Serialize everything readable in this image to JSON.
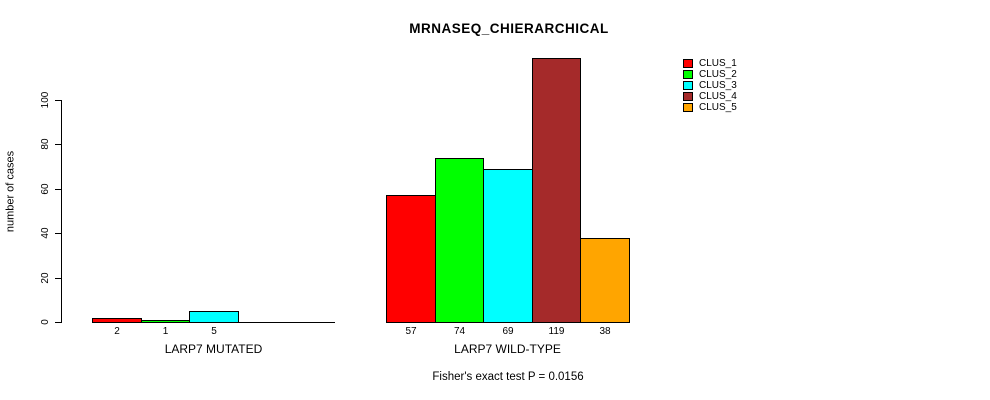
{
  "chart_data": {
    "type": "bar",
    "title": "MRNASEQ_CHIERARCHICAL",
    "ylabel": "number of cases",
    "xlabel": "",
    "footnote": "Fisher's exact test P = 0.0156",
    "y_ticks": [
      0,
      20,
      40,
      60,
      80,
      100
    ],
    "ylim": [
      0,
      119
    ],
    "grid": false,
    "legend_position": "top-right",
    "series": [
      {
        "name": "CLUS_1",
        "color": "#FF0000"
      },
      {
        "name": "CLUS_2",
        "color": "#00FF00"
      },
      {
        "name": "CLUS_3",
        "color": "#00FFFF"
      },
      {
        "name": "CLUS_4",
        "color": "#A52A2A"
      },
      {
        "name": "CLUS_5",
        "color": "#FFA500"
      }
    ],
    "groups": [
      {
        "label": "LARP7 MUTATED",
        "values": [
          2,
          1,
          5,
          0,
          0
        ]
      },
      {
        "label": "LARP7 WILD-TYPE",
        "values": [
          57,
          74,
          69,
          119,
          38
        ]
      }
    ],
    "colors": {
      "axis": "#000000",
      "background": "#FFFFFF"
    }
  }
}
